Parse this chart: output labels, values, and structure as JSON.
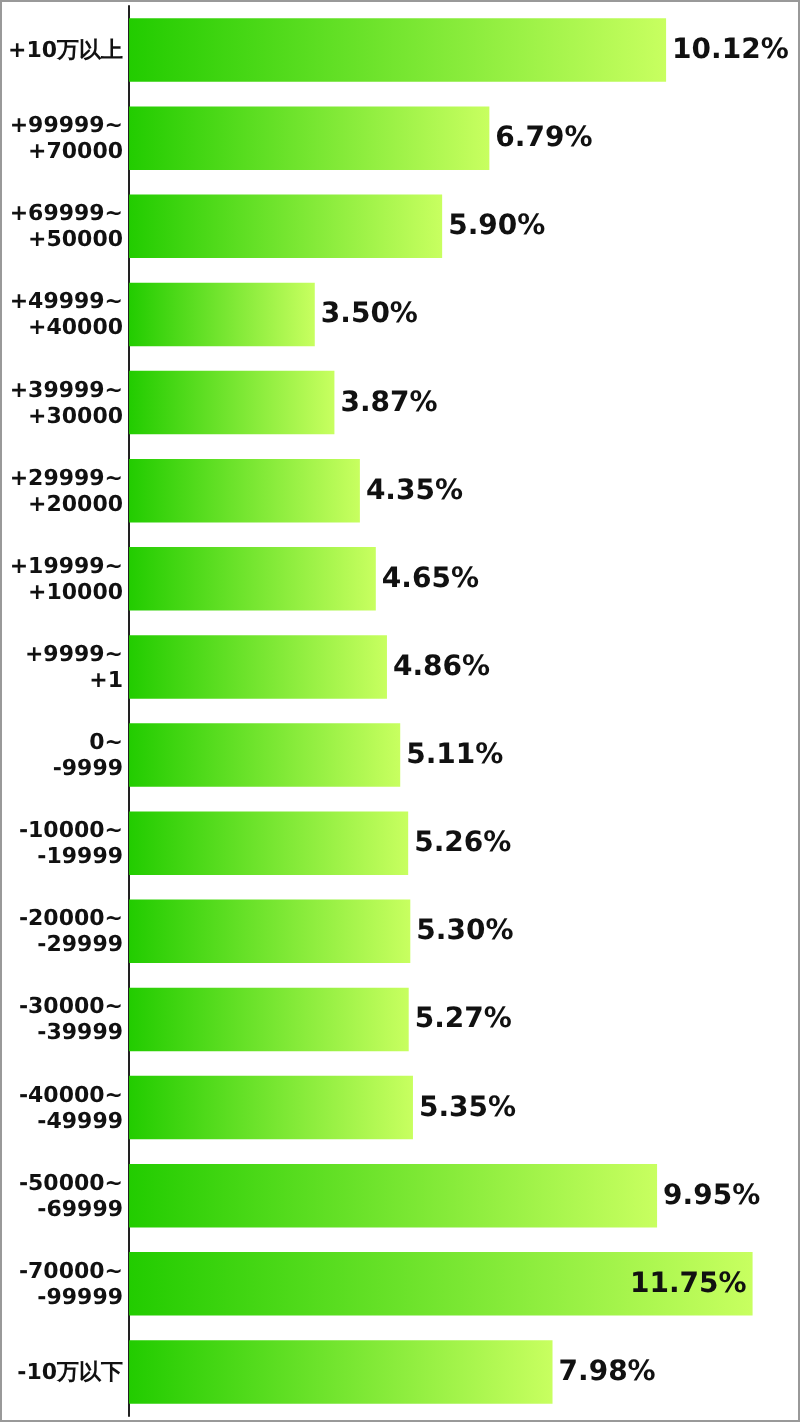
{
  "chart_data": {
    "type": "bar",
    "orientation": "horizontal",
    "categories": [
      "+10万以上",
      "+99999~+70000",
      "+69999~+50000",
      "+49999~+40000",
      "+39999~+30000",
      "+29999~+20000",
      "+19999~+10000",
      "+9999~+1",
      "0~-9999",
      "-10000~-19999",
      "-20000~-29999",
      "-30000~-39999",
      "-40000~-49999",
      "-50000~-69999",
      "-70000~-99999",
      "-10万以下"
    ],
    "values": [
      10.12,
      6.79,
      5.9,
      3.5,
      3.87,
      4.35,
      4.65,
      4.86,
      5.11,
      5.26,
      5.3,
      5.27,
      5.35,
      9.95,
      11.75,
      7.98
    ],
    "value_labels": [
      "10.12%",
      "6.79%",
      "5.90%",
      "3.50%",
      "3.87%",
      "4.35%",
      "4.65%",
      "4.86%",
      "5.11%",
      "5.26%",
      "5.30%",
      "5.27%",
      "5.35%",
      "9.95%",
      "11.75%",
      "7.98%"
    ],
    "color": "#22cc00"
  }
}
